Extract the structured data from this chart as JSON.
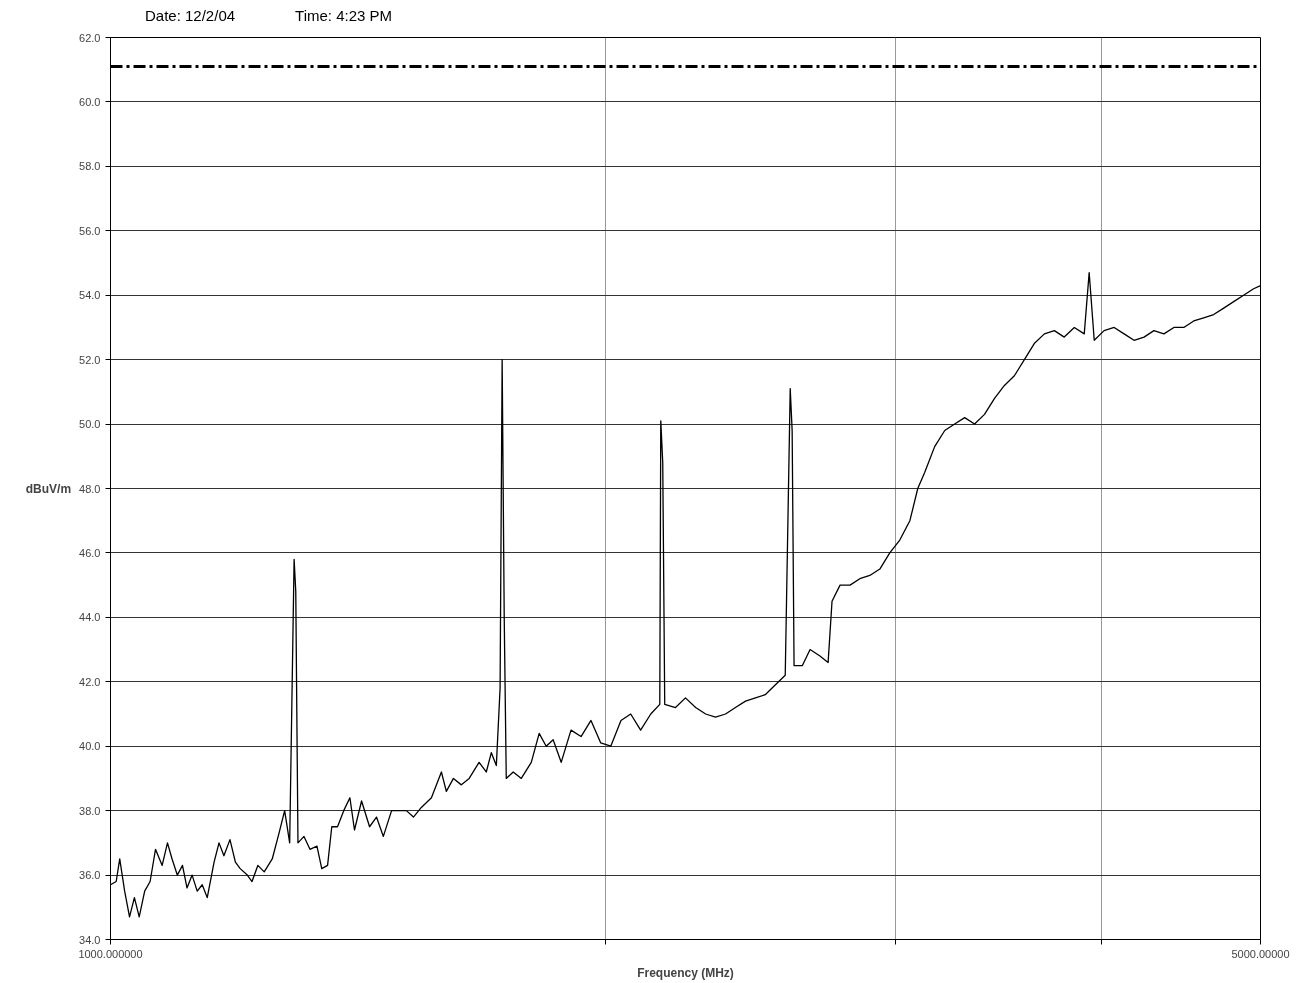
{
  "chart_data": {
    "type": "line",
    "xlabel": "Frequency (MHz)",
    "ylabel": "dBuV/m",
    "annotations": [
      "Date:  12/2/04",
      "Time:  4:23 PM"
    ],
    "log": "x",
    "grid": true,
    "marker": "none",
    "line_style": "solid",
    "xlim": [
      1000,
      5000
    ],
    "ylim": [
      34,
      62
    ],
    "xticks": [
      {
        "value": 1000,
        "label": "1000.000000"
      },
      {
        "value": 2000,
        "label": null
      },
      {
        "value": 3000,
        "label": null
      },
      {
        "value": 4000,
        "label": null
      },
      {
        "value": 5000,
        "label": "5000.00000"
      }
    ],
    "yticks": [
      {
        "value": 34,
        "label": "34.0"
      },
      {
        "value": 36,
        "label": "36.0"
      },
      {
        "value": 38,
        "label": "38.0"
      },
      {
        "value": 40,
        "label": "40.0"
      },
      {
        "value": 42,
        "label": "42.0"
      },
      {
        "value": 44,
        "label": "44.0"
      },
      {
        "value": 46,
        "label": "46.0"
      },
      {
        "value": 48,
        "label": "48.0"
      },
      {
        "value": 50,
        "label": "50.0"
      },
      {
        "value": 52,
        "label": "52.0"
      },
      {
        "value": 54,
        "label": "54.0"
      },
      {
        "value": 56,
        "label": "56.0"
      },
      {
        "value": 58,
        "label": "58.0"
      },
      {
        "value": 60,
        "label": "60.0"
      },
      {
        "value": 62,
        "label": "62.0"
      }
    ],
    "ref_lines": [
      {
        "axis": "y",
        "value": 61.1,
        "color": "#000000",
        "line_style": "dashdot"
      }
    ],
    "series": [
      {
        "color": "#000000",
        "x": [
          1000,
          1008,
          1013,
          1020,
          1027,
          1034,
          1041,
          1049,
          1057,
          1065,
          1075,
          1083,
          1090,
          1098,
          1106,
          1113,
          1121,
          1129,
          1137,
          1145,
          1156,
          1164,
          1172,
          1182,
          1191,
          1199,
          1211,
          1219,
          1229,
          1240,
          1254,
          1266,
          1276,
          1285,
          1293,
          1296,
          1300,
          1311,
          1322,
          1335,
          1344,
          1355,
          1363,
          1374,
          1386,
          1398,
          1407,
          1421,
          1437,
          1451,
          1465,
          1482,
          1499,
          1513,
          1528,
          1545,
          1567,
          1589,
          1600,
          1616,
          1634,
          1652,
          1675,
          1692,
          1704,
          1716,
          1725,
          1730,
          1735,
          1740,
          1757,
          1777,
          1802,
          1822,
          1840,
          1858,
          1879,
          1905,
          1932,
          1959,
          1986,
          2014,
          2043,
          2071,
          2100,
          2130,
          2157,
          2160,
          2166,
          2172,
          2205,
          2236,
          2268,
          2300,
          2332,
          2365,
          2398,
          2432,
          2466,
          2500,
          2535,
          2571,
          2589,
          2596,
          2603,
          2633,
          2662,
          2699,
          2730,
          2745,
          2776,
          2815,
          2854,
          2894,
          2935,
          2976,
          3018,
          3061,
          3095,
          3125,
          3169,
          3214,
          3259,
          3305,
          3351,
          3398,
          3446,
          3494,
          3543,
          3593,
          3643,
          3695,
          3747,
          3799,
          3853,
          3907,
          3934,
          3962,
          4017,
          4074,
          4131,
          4189,
          4248,
          4307,
          4368,
          4429,
          4491,
          4554,
          4618,
          4683,
          4749,
          4816,
          4883,
          4952,
          5000
        ],
        "values": [
          35.7,
          35.8,
          36.5,
          35.5,
          34.7,
          35.3,
          34.7,
          35.5,
          35.8,
          36.8,
          36.3,
          37.0,
          36.5,
          36.0,
          36.3,
          35.6,
          36.0,
          35.5,
          35.7,
          35.3,
          36.4,
          37.0,
          36.6,
          37.1,
          36.4,
          36.2,
          36.0,
          35.8,
          36.3,
          36.1,
          36.5,
          37.3,
          38.0,
          37.0,
          45.8,
          44.8,
          37.0,
          37.2,
          36.8,
          36.9,
          36.2,
          36.3,
          37.5,
          37.5,
          38.0,
          38.4,
          37.4,
          38.3,
          37.5,
          37.8,
          37.2,
          38.0,
          38.0,
          38.0,
          37.8,
          38.1,
          38.4,
          39.2,
          38.6,
          39.0,
          38.8,
          39.0,
          39.5,
          39.2,
          39.8,
          39.4,
          41.8,
          52.0,
          44.0,
          39.0,
          39.2,
          39.0,
          39.5,
          40.4,
          40.0,
          40.2,
          39.5,
          40.5,
          40.3,
          40.8,
          40.1,
          40.0,
          40.8,
          41.0,
          40.5,
          41.0,
          41.3,
          50.1,
          48.8,
          41.3,
          41.2,
          41.5,
          41.2,
          41.0,
          40.9,
          41.0,
          41.2,
          41.4,
          41.5,
          41.6,
          41.9,
          42.2,
          51.1,
          49.8,
          42.5,
          42.5,
          43.0,
          42.8,
          42.6,
          44.5,
          45.0,
          45.0,
          45.2,
          45.3,
          45.5,
          46.0,
          46.4,
          47.0,
          48.0,
          48.5,
          49.3,
          49.8,
          50.0,
          50.2,
          50.0,
          50.3,
          50.8,
          51.2,
          51.5,
          52.0,
          52.5,
          52.8,
          52.9,
          52.7,
          53.0,
          52.8,
          54.7,
          52.6,
          52.9,
          53.0,
          52.8,
          52.6,
          52.7,
          52.9,
          52.8,
          53.0,
          53.0,
          53.2,
          53.3,
          53.4,
          53.6,
          53.8,
          54.0,
          54.2,
          54.3
        ]
      }
    ]
  }
}
